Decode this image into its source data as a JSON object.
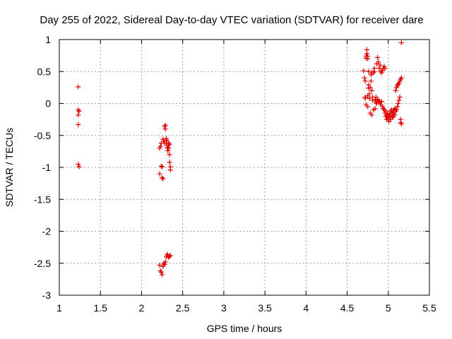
{
  "chart_data": {
    "type": "scatter",
    "title": "Day 255 of 2022, Sidereal Day-to-day VTEC variation (SDTVAR) for receiver dare",
    "xlabel": "GPS time / hours",
    "ylabel": "SDTVAR / TECUs",
    "xlim": [
      1,
      5.5
    ],
    "ylim": [
      -3,
      1
    ],
    "grid": true,
    "x_ticks": [
      "1",
      "1.5",
      "2",
      "2.5",
      "3",
      "3.5",
      "4",
      "4.5",
      "5",
      "5.5"
    ],
    "y_ticks": [
      "1",
      "0.5",
      "0",
      "-0.5",
      "-1",
      "-1.5",
      "-2",
      "-2.5",
      "-3"
    ],
    "series": [
      {
        "name": "SDTVAR",
        "color": "#e00000",
        "marker": "plus",
        "points": [
          [
            1.23,
            0.26
          ],
          [
            1.23,
            -0.1
          ],
          [
            1.24,
            -0.12
          ],
          [
            1.23,
            -0.18
          ],
          [
            1.23,
            -0.33
          ],
          [
            1.23,
            -0.95
          ],
          [
            1.24,
            -0.99
          ],
          [
            2.22,
            -0.7
          ],
          [
            2.23,
            -0.67
          ],
          [
            2.24,
            -0.62
          ],
          [
            2.24,
            -0.98
          ],
          [
            2.25,
            -0.99
          ],
          [
            2.22,
            -1.1
          ],
          [
            2.25,
            -1.16
          ],
          [
            2.26,
            -1.18
          ],
          [
            2.26,
            -0.56
          ],
          [
            2.27,
            -0.59
          ],
          [
            2.28,
            -0.62
          ],
          [
            2.28,
            -0.36
          ],
          [
            2.29,
            -0.34
          ],
          [
            2.29,
            -0.4
          ],
          [
            2.3,
            -0.55
          ],
          [
            2.3,
            -0.62
          ],
          [
            2.31,
            -0.58
          ],
          [
            2.31,
            -0.69
          ],
          [
            2.32,
            -0.74
          ],
          [
            2.32,
            -0.66
          ],
          [
            2.33,
            -0.7
          ],
          [
            2.33,
            -0.62
          ],
          [
            2.34,
            -0.64
          ],
          [
            2.34,
            -0.8
          ],
          [
            2.34,
            -0.92
          ],
          [
            2.35,
            -0.99
          ],
          [
            2.35,
            -1.04
          ],
          [
            2.22,
            -2.53
          ],
          [
            2.23,
            -2.62
          ],
          [
            2.24,
            -2.64
          ],
          [
            2.25,
            -2.68
          ],
          [
            2.26,
            -2.55
          ],
          [
            2.27,
            -2.5
          ],
          [
            2.28,
            -2.52
          ],
          [
            2.29,
            -2.48
          ],
          [
            2.3,
            -2.4
          ],
          [
            2.31,
            -2.36
          ],
          [
            2.32,
            -2.38
          ],
          [
            2.33,
            -2.41
          ],
          [
            2.34,
            -2.39
          ],
          [
            2.35,
            -2.38
          ],
          [
            4.7,
            0.51
          ],
          [
            4.71,
            0.4
          ],
          [
            4.72,
            0.35
          ],
          [
            4.72,
            0.1
          ],
          [
            4.72,
            0.08
          ],
          [
            4.73,
            -0.02
          ],
          [
            4.73,
            0.74
          ],
          [
            4.73,
            0.71
          ],
          [
            4.74,
            0.78
          ],
          [
            4.74,
            0.84
          ],
          [
            4.75,
            0.74
          ],
          [
            4.75,
            0.7
          ],
          [
            4.75,
            0.12
          ],
          [
            4.75,
            -0.05
          ],
          [
            4.76,
            0.29
          ],
          [
            4.76,
            0.5
          ],
          [
            4.76,
            0.24
          ],
          [
            4.77,
            0.15
          ],
          [
            4.77,
            0.08
          ],
          [
            4.78,
            -0.15
          ],
          [
            4.78,
            0.25
          ],
          [
            4.79,
            0.35
          ],
          [
            4.79,
            0.45
          ],
          [
            4.8,
            0.48
          ],
          [
            4.8,
            0.2
          ],
          [
            4.8,
            -0.18
          ],
          [
            4.81,
            0.1
          ],
          [
            4.81,
            0.05
          ],
          [
            4.82,
            0.48
          ],
          [
            4.82,
            -0.1
          ],
          [
            4.83,
            0.55
          ],
          [
            4.83,
            0.5
          ],
          [
            4.84,
            -0.08
          ],
          [
            4.84,
            0.06
          ],
          [
            4.85,
            0.02
          ],
          [
            4.85,
            0.1
          ],
          [
            4.86,
            0.62
          ],
          [
            4.86,
            0.0
          ],
          [
            4.87,
            0.72
          ],
          [
            4.87,
            0.07
          ],
          [
            4.88,
            0.04
          ],
          [
            4.88,
            0.65
          ],
          [
            4.89,
            0.55
          ],
          [
            4.89,
            0.03
          ],
          [
            4.9,
            0.6
          ],
          [
            4.9,
            0.02
          ],
          [
            4.91,
            0.5
          ],
          [
            4.91,
            -0.02
          ],
          [
            4.92,
            0.48
          ],
          [
            4.92,
            0.03
          ],
          [
            4.93,
            0.52
          ],
          [
            4.93,
            -0.05
          ],
          [
            4.94,
            0.55
          ],
          [
            4.94,
            -0.08
          ],
          [
            4.95,
            0.58
          ],
          [
            4.95,
            -0.1
          ],
          [
            4.96,
            0.55
          ],
          [
            4.96,
            -0.15
          ],
          [
            4.97,
            -0.12
          ],
          [
            4.97,
            -0.2
          ],
          [
            4.98,
            -0.18
          ],
          [
            4.98,
            -0.25
          ],
          [
            4.99,
            -0.22
          ],
          [
            4.99,
            -0.15
          ],
          [
            5.0,
            -0.2
          ],
          [
            5.0,
            -0.25
          ],
          [
            5.01,
            -0.28
          ],
          [
            5.01,
            -0.18
          ],
          [
            5.02,
            -0.22
          ],
          [
            5.02,
            -0.15
          ],
          [
            5.03,
            -0.25
          ],
          [
            5.03,
            -0.12
          ],
          [
            5.04,
            -0.18
          ],
          [
            5.04,
            -0.1
          ],
          [
            5.05,
            -0.15
          ],
          [
            5.05,
            -0.22
          ],
          [
            5.06,
            -0.12
          ],
          [
            5.06,
            -0.2
          ],
          [
            5.07,
            -0.15
          ],
          [
            5.07,
            -0.1
          ],
          [
            5.08,
            -0.18
          ],
          [
            5.08,
            -0.08
          ],
          [
            5.09,
            -0.12
          ],
          [
            5.09,
            0.2
          ],
          [
            5.1,
            0.25
          ],
          [
            5.1,
            -0.1
          ],
          [
            5.11,
            0.28
          ],
          [
            5.11,
            -0.05
          ],
          [
            5.12,
            0.3
          ],
          [
            5.12,
            0.0
          ],
          [
            5.13,
            0.32
          ],
          [
            5.13,
            0.05
          ],
          [
            5.14,
            0.35
          ],
          [
            5.14,
            0.1
          ],
          [
            5.15,
            0.38
          ],
          [
            5.15,
            -0.25
          ],
          [
            5.15,
            -0.3
          ],
          [
            5.16,
            0.4
          ],
          [
            5.16,
            -0.32
          ],
          [
            5.16,
            0.95
          ]
        ]
      }
    ]
  }
}
